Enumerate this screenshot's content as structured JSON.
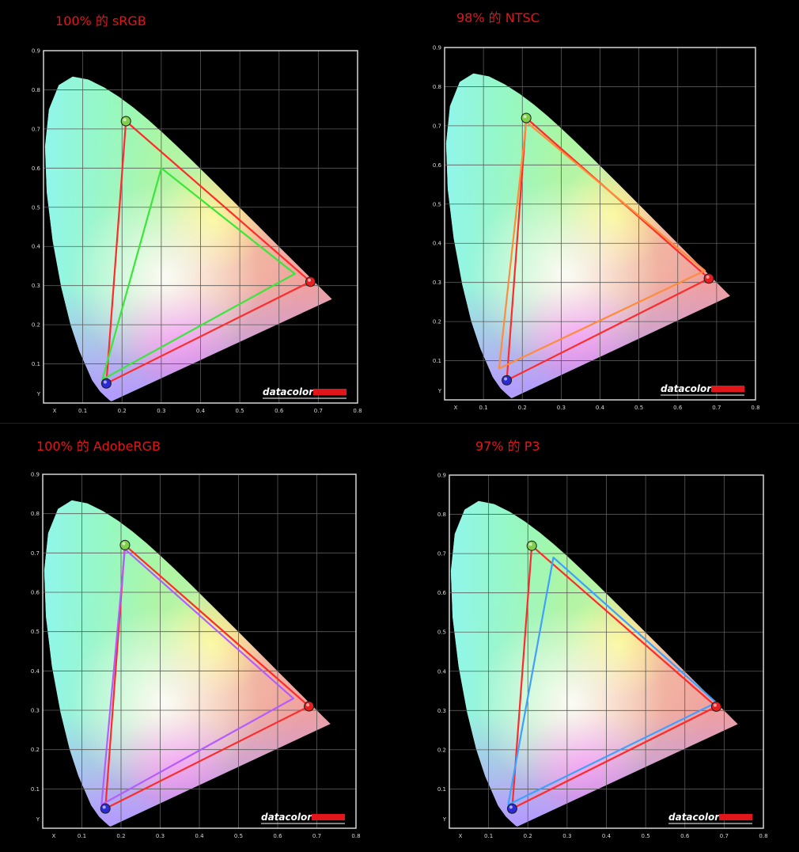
{
  "colors": {
    "frame": "#d6d6d6",
    "grid": "#5a5a5a",
    "reference_triangle": "#ff2a2a",
    "brand_bar": "#e0161b",
    "title_text": "#e0161b"
  },
  "brand": "datacolor",
  "chart_data": [
    {
      "type": "scatter",
      "title": "100% 的 sRGB",
      "xlabel": "X",
      "ylabel": "Y",
      "xlim": [
        0,
        0.8
      ],
      "ylim": [
        0,
        0.9
      ],
      "x_ticks": [
        "0.1",
        "0.2",
        "0.3",
        "0.4",
        "0.5",
        "0.6",
        "0.7",
        "0.8"
      ],
      "y_ticks": [
        "0.1",
        "0.2",
        "0.3",
        "0.4",
        "0.5",
        "0.6",
        "0.7",
        "0.8",
        "0.9"
      ],
      "grid": true,
      "series": [
        {
          "color": "#ff2a2a",
          "x": [
            0.68,
            0.21,
            0.16
          ],
          "y": [
            0.31,
            0.72,
            0.05
          ]
        },
        {
          "color": "#3ae63a",
          "x": [
            0.64,
            0.3,
            0.15
          ],
          "y": [
            0.33,
            0.6,
            0.06
          ]
        }
      ],
      "primaries": [
        {
          "color": "#7fcf4a",
          "x": 0.21,
          "y": 0.72
        },
        {
          "color": "#e52020",
          "x": 0.68,
          "y": 0.31
        },
        {
          "color": "#2a2ad6",
          "x": 0.16,
          "y": 0.05
        }
      ]
    },
    {
      "type": "scatter",
      "title": "98% 的 NTSC",
      "xlabel": "X",
      "ylabel": "Y",
      "xlim": [
        0,
        0.8
      ],
      "ylim": [
        0,
        0.9
      ],
      "x_ticks": [
        "0.1",
        "0.2",
        "0.3",
        "0.4",
        "0.5",
        "0.6",
        "0.7",
        "0.8"
      ],
      "y_ticks": [
        "0.1",
        "0.2",
        "0.3",
        "0.4",
        "0.5",
        "0.6",
        "0.7",
        "0.8",
        "0.9"
      ],
      "grid": true,
      "series": [
        {
          "color": "#ff2a2a",
          "x": [
            0.68,
            0.21,
            0.16
          ],
          "y": [
            0.31,
            0.72,
            0.05
          ]
        },
        {
          "color": "#ff8c3a",
          "x": [
            0.67,
            0.21,
            0.14
          ],
          "y": [
            0.33,
            0.71,
            0.08
          ]
        }
      ],
      "primaries": [
        {
          "color": "#7fcf4a",
          "x": 0.21,
          "y": 0.72
        },
        {
          "color": "#e52020",
          "x": 0.68,
          "y": 0.31
        },
        {
          "color": "#2a2ad6",
          "x": 0.16,
          "y": 0.05
        }
      ]
    },
    {
      "type": "scatter",
      "title": "100% 的 AdobeRGB",
      "xlabel": "X",
      "ylabel": "Y",
      "xlim": [
        0,
        0.8
      ],
      "ylim": [
        0,
        0.9
      ],
      "x_ticks": [
        "0.1",
        "0.2",
        "0.3",
        "0.4",
        "0.5",
        "0.6",
        "0.7",
        "0.8"
      ],
      "y_ticks": [
        "0.1",
        "0.2",
        "0.3",
        "0.4",
        "0.5",
        "0.6",
        "0.7",
        "0.8",
        "0.9"
      ],
      "grid": true,
      "series": [
        {
          "color": "#ff2a2a",
          "x": [
            0.68,
            0.21,
            0.16
          ],
          "y": [
            0.31,
            0.72,
            0.05
          ]
        },
        {
          "color": "#b35cff",
          "x": [
            0.64,
            0.21,
            0.15
          ],
          "y": [
            0.33,
            0.71,
            0.06
          ]
        }
      ],
      "primaries": [
        {
          "color": "#7fcf4a",
          "x": 0.21,
          "y": 0.72
        },
        {
          "color": "#e52020",
          "x": 0.68,
          "y": 0.31
        },
        {
          "color": "#2a2ad6",
          "x": 0.16,
          "y": 0.05
        }
      ]
    },
    {
      "type": "scatter",
      "title": "97% 的 P3",
      "xlabel": "X",
      "ylabel": "Y",
      "xlim": [
        0,
        0.8
      ],
      "ylim": [
        0,
        0.9
      ],
      "x_ticks": [
        "0.1",
        "0.2",
        "0.3",
        "0.4",
        "0.5",
        "0.6",
        "0.7",
        "0.8"
      ],
      "y_ticks": [
        "0.1",
        "0.2",
        "0.3",
        "0.4",
        "0.5",
        "0.6",
        "0.7",
        "0.8",
        "0.9"
      ],
      "grid": true,
      "series": [
        {
          "color": "#ff2a2a",
          "x": [
            0.68,
            0.21,
            0.16
          ],
          "y": [
            0.31,
            0.72,
            0.05
          ]
        },
        {
          "color": "#3ea0ff",
          "x": [
            0.68,
            0.265,
            0.15
          ],
          "y": [
            0.32,
            0.69,
            0.06
          ]
        }
      ],
      "primaries": [
        {
          "color": "#7fcf4a",
          "x": 0.21,
          "y": 0.72
        },
        {
          "color": "#e52020",
          "x": 0.68,
          "y": 0.31
        },
        {
          "color": "#2a2ad6",
          "x": 0.16,
          "y": 0.05
        }
      ]
    }
  ]
}
